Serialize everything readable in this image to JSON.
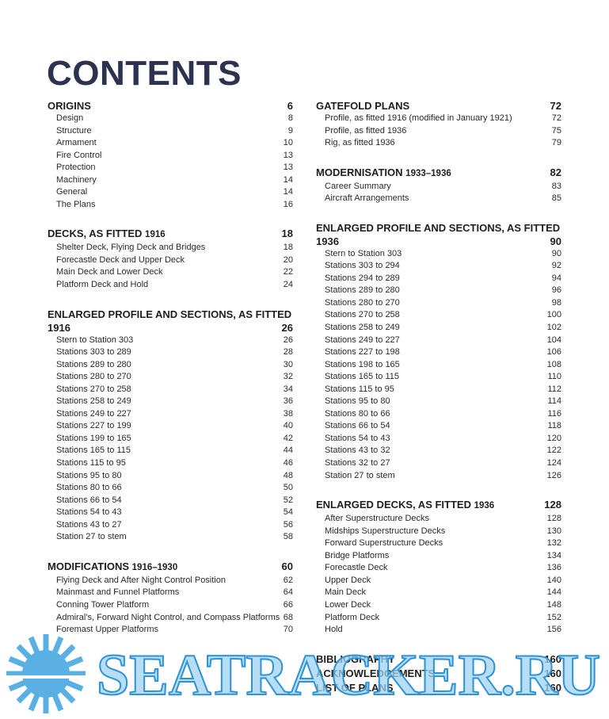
{
  "title": "CONTENTS",
  "columns": [
    [
      {
        "heading": "ORIGINS",
        "page": 6,
        "entries": [
          {
            "label": "Design",
            "page": 8
          },
          {
            "label": "Structure",
            "page": 9
          },
          {
            "label": "Armament",
            "page": 10
          },
          {
            "label": "Fire Control",
            "page": 13
          },
          {
            "label": "Protection",
            "page": 13
          },
          {
            "label": "Machinery",
            "page": 14
          },
          {
            "label": "General",
            "page": 14
          },
          {
            "label": "The Plans",
            "page": 16
          }
        ]
      },
      {
        "heading": "DECKS, AS FITTED",
        "heading_suffix": "1916",
        "page": 18,
        "entries": [
          {
            "label": "Shelter Deck, Flying Deck and Bridges",
            "page": 18
          },
          {
            "label": "Forecastle Deck and Upper Deck",
            "page": 20
          },
          {
            "label": "Main Deck and Lower Deck",
            "page": 22
          },
          {
            "label": "Platform Deck and Hold",
            "page": 24
          }
        ]
      },
      {
        "heading": "ENLARGED PROFILE AND SECTIONS, AS FITTED",
        "heading_suffix": "1916",
        "page": 26,
        "entries": [
          {
            "label": "Stern to Station 303",
            "page": 26
          },
          {
            "label": "Stations 303 to 289",
            "page": 28
          },
          {
            "label": "Stations 289 to 280",
            "page": 30
          },
          {
            "label": "Stations 280 to 270",
            "page": 32
          },
          {
            "label": "Stations 270 to 258",
            "page": 34
          },
          {
            "label": "Stations 258 to 249",
            "page": 36
          },
          {
            "label": "Stations 249 to 227",
            "page": 38
          },
          {
            "label": "Stations 227 to 199",
            "page": 40
          },
          {
            "label": "Stations 199 to 165",
            "page": 42
          },
          {
            "label": "Stations 165 to 115",
            "page": 44
          },
          {
            "label": "Stations 115 to 95",
            "page": 46
          },
          {
            "label": "Stations 95 to 80",
            "page": 48
          },
          {
            "label": "Stations 80 to 66",
            "page": 50
          },
          {
            "label": "Stations 66 to 54",
            "page": 52
          },
          {
            "label": "Stations 54 to 43",
            "page": 54
          },
          {
            "label": "Stations 43 to 27",
            "page": 56
          },
          {
            "label": "Station 27 to stem",
            "page": 58
          }
        ]
      },
      {
        "heading": "MODIFICATIONS",
        "heading_suffix": "1916–1930",
        "page": 60,
        "entries": [
          {
            "label": "Flying Deck and After Night Control Position",
            "page": 62
          },
          {
            "label": "Mainmast and Funnel Platforms",
            "page": 64
          },
          {
            "label": "Conning Tower Platform",
            "page": 66
          },
          {
            "label": "Admiral’s, Forward Night Control, and Compass Platforms",
            "page": 68
          },
          {
            "label": "Foremast Upper Platforms",
            "page": 70
          }
        ]
      }
    ],
    [
      {
        "heading": "GATEFOLD PLANS",
        "page": 72,
        "entries": [
          {
            "label": "Profile, as fitted 1916 (modified in January 1921)",
            "page": 72
          },
          {
            "label": "Profile, as fitted 1936",
            "page": 75
          },
          {
            "label": "Rig, as fitted 1936",
            "page": 79
          }
        ]
      },
      {
        "heading": "MODERNISATION",
        "heading_suffix": "1933–1936",
        "page": 82,
        "entries": [
          {
            "label": "Career Summary",
            "page": 83
          },
          {
            "label": "Aircraft Arrangements",
            "page": 85
          }
        ]
      },
      {
        "heading": "ENLARGED PROFILE AND SECTIONS, AS FITTED",
        "heading_suffix": "1936",
        "page": 90,
        "entries": [
          {
            "label": "Stern to Station 303",
            "page": 90
          },
          {
            "label": "Stations 303 to 294",
            "page": 92
          },
          {
            "label": "Stations 294 to 289",
            "page": 94
          },
          {
            "label": "Stations 289 to 280",
            "page": 96
          },
          {
            "label": "Stations 280 to 270",
            "page": 98
          },
          {
            "label": "Stations 270 to 258",
            "page": 100
          },
          {
            "label": "Stations 258 to 249",
            "page": 102
          },
          {
            "label": "Stations 249 to 227",
            "page": 104
          },
          {
            "label": "Stations 227 to 198",
            "page": 106
          },
          {
            "label": "Stations 198 to 165",
            "page": 108
          },
          {
            "label": "Stations 165 to 115",
            "page": 110
          },
          {
            "label": "Stations 115 to 95",
            "page": 112
          },
          {
            "label": "Stations 95 to 80",
            "page": 114
          },
          {
            "label": "Stations 80 to 66",
            "page": 116
          },
          {
            "label": "Stations 66 to 54",
            "page": 118
          },
          {
            "label": "Stations 54 to 43",
            "page": 120
          },
          {
            "label": "Stations 43 to 32",
            "page": 122
          },
          {
            "label": "Stations 32 to 27",
            "page": 124
          },
          {
            "label": "Station 27 to stem",
            "page": 126
          }
        ]
      },
      {
        "heading": "ENLARGED DECKS, AS FITTED",
        "heading_suffix": "1936",
        "page": 128,
        "entries": [
          {
            "label": "After Superstructure Decks",
            "page": 128
          },
          {
            "label": "Midships Superstructure Decks",
            "page": 130
          },
          {
            "label": "Forward Superstructure Decks",
            "page": 132
          },
          {
            "label": "Bridge Platforms",
            "page": 134
          },
          {
            "label": "Forecastle Deck",
            "page": 136
          },
          {
            "label": "Upper Deck",
            "page": 140
          },
          {
            "label": "Main Deck",
            "page": 144
          },
          {
            "label": "Lower Deck",
            "page": 148
          },
          {
            "label": "Platform Deck",
            "page": 152
          },
          {
            "label": "Hold",
            "page": 156
          }
        ]
      },
      {
        "heading": "BIBLIOGRAPHY",
        "page": 160
      },
      {
        "heading": "ACKNOWLEDGEMENTS",
        "page": 160
      },
      {
        "heading": "LIST OF PLANS",
        "page": 160
      }
    ]
  ],
  "watermark": "SEATRACKER.RU"
}
